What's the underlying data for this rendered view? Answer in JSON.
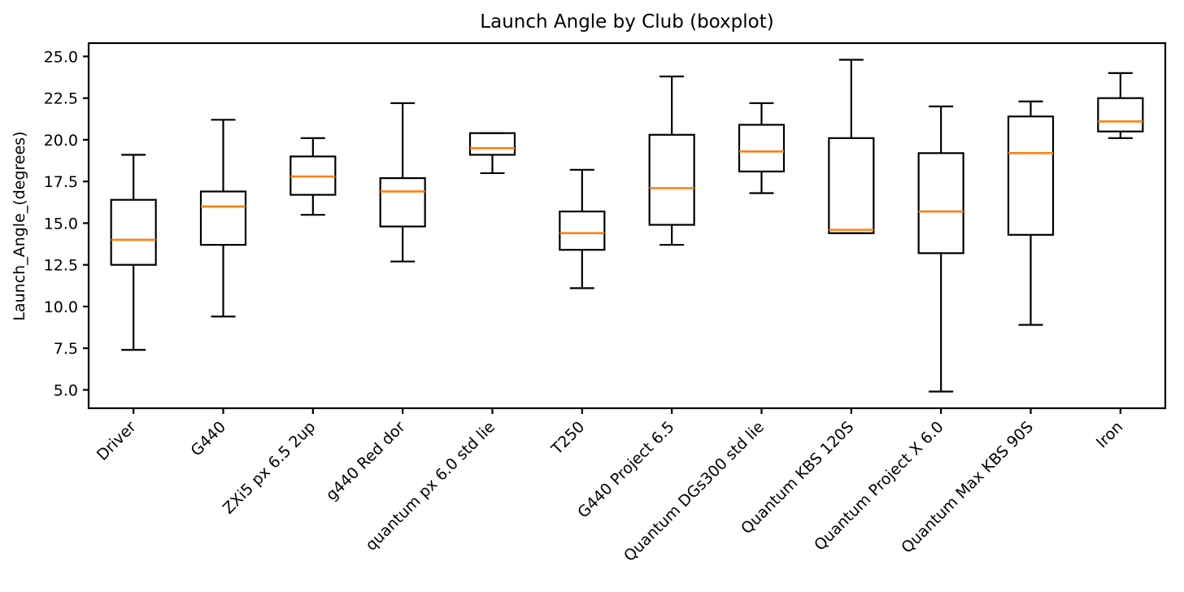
{
  "chart_data": {
    "type": "boxplot",
    "title": "Launch Angle by Club (boxplot)",
    "xlabel": "",
    "ylabel": "Launch_Angle_(degrees)",
    "ylim": [
      3.9,
      25.8
    ],
    "yticks": [
      5.0,
      7.5,
      10.0,
      12.5,
      15.0,
      17.5,
      20.0,
      22.5,
      25.0
    ],
    "grid": false,
    "legend": null,
    "x_tick_rotation_degrees": 45,
    "axis_color": "#000000",
    "box_color": "#000000",
    "median_color": "#ff7f0e",
    "categories": [
      "Driver",
      "G440",
      "ZXi5 px 6.5 2up",
      "g440 Red dor",
      "quantum px 6.0 std lie",
      "T250",
      "G440 Project 6.5",
      "Quantum DGs300 std lie",
      "Quantum KBS 120S",
      "Quantum Project X 6.0",
      "Quantum Max KBS 90S",
      "Iron"
    ],
    "series": [
      {
        "name": "Driver",
        "whisker_low": 7.4,
        "q1": 12.5,
        "median": 14.0,
        "q3": 16.4,
        "whisker_high": 19.1
      },
      {
        "name": "G440",
        "whisker_low": 9.4,
        "q1": 13.7,
        "median": 16.0,
        "q3": 16.9,
        "whisker_high": 21.2
      },
      {
        "name": "ZXi5 px 6.5 2up",
        "whisker_low": 15.5,
        "q1": 16.7,
        "median": 17.8,
        "q3": 19.0,
        "whisker_high": 20.1
      },
      {
        "name": "g440 Red dor",
        "whisker_low": 12.7,
        "q1": 14.8,
        "median": 16.9,
        "q3": 17.7,
        "whisker_high": 22.2
      },
      {
        "name": "quantum px 6.0 std lie",
        "whisker_low": 18.0,
        "q1": 19.1,
        "median": 19.5,
        "q3": 20.4,
        "whisker_high": 20.4
      },
      {
        "name": "T250",
        "whisker_low": 11.1,
        "q1": 13.4,
        "median": 14.4,
        "q3": 15.7,
        "whisker_high": 18.2
      },
      {
        "name": "G440 Project 6.5",
        "whisker_low": 13.7,
        "q1": 14.9,
        "median": 17.1,
        "q3": 20.3,
        "whisker_high": 23.8
      },
      {
        "name": "Quantum DGs300 std lie",
        "whisker_low": 16.8,
        "q1": 18.1,
        "median": 19.3,
        "q3": 20.9,
        "whisker_high": 22.2
      },
      {
        "name": "Quantum KBS 120S",
        "whisker_low": 14.4,
        "q1": 14.4,
        "median": 14.6,
        "q3": 20.1,
        "whisker_high": 24.8
      },
      {
        "name": "Quantum Project X 6.0",
        "whisker_low": 4.9,
        "q1": 13.2,
        "median": 15.7,
        "q3": 19.2,
        "whisker_high": 22.0
      },
      {
        "name": "Quantum Max KBS 90S",
        "whisker_low": 8.9,
        "q1": 14.3,
        "median": 19.2,
        "q3": 21.4,
        "whisker_high": 22.3
      },
      {
        "name": "Iron",
        "whisker_low": 20.1,
        "q1": 20.5,
        "median": 21.1,
        "q3": 22.5,
        "whisker_high": 24.0
      }
    ]
  }
}
